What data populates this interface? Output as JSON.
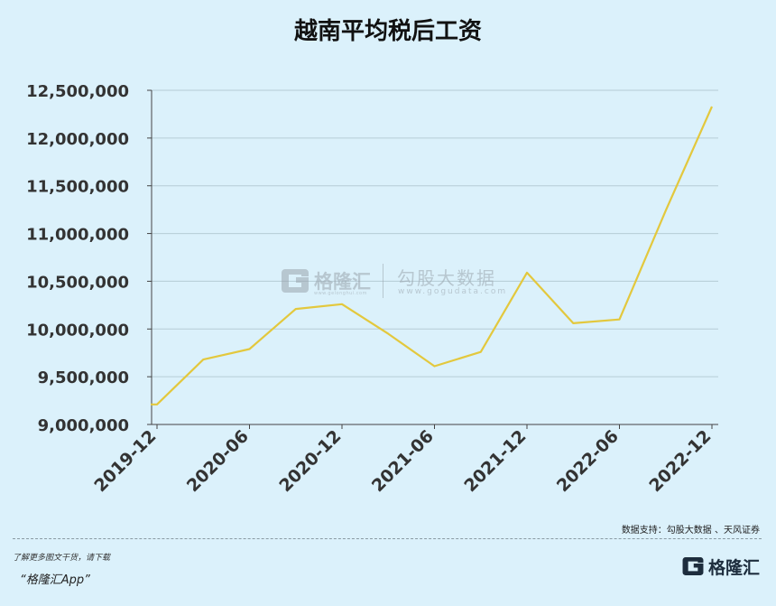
{
  "title": "越南平均税后工资",
  "source_note": "数据支持：勾股大数据 、天风证券",
  "footer": {
    "note": "了解更多图文干货，请下载",
    "app": "“格隆汇App”",
    "logo_text": "格隆汇"
  },
  "watermark": {
    "brand": "格隆汇",
    "brand_url": "www.gelonghui.com",
    "name": "勾股大数据",
    "url": "www.gogudata.com"
  },
  "colors": {
    "line": "#e3c83d",
    "background": "#dbf1fb",
    "grid": "#b6ccd6"
  },
  "chart_data": {
    "type": "line",
    "title": "越南平均税后工资",
    "x": [
      "2019-12",
      "2020-03",
      "2020-06",
      "2020-09",
      "2020-12",
      "2021-03",
      "2021-06",
      "2021-09",
      "2021-12",
      "2022-03",
      "2022-06",
      "2022-09",
      "2022-12"
    ],
    "series": [
      {
        "values": [
          9210000,
          9680000,
          9790000,
          10210000,
          10260000,
          9950000,
          9610000,
          9760000,
          10590000,
          10060000,
          10100000,
          11240000,
          12330000
        ]
      }
    ],
    "x_ticks": [
      "2019-12",
      "2020-06",
      "2020-12",
      "2021-06",
      "2021-12",
      "2022-06",
      "2022-12"
    ],
    "y_ticks": [
      "9,000,000",
      "9,500,000",
      "10,000,000",
      "10,500,000",
      "11,000,000",
      "11,500,000",
      "12,000,000",
      "12,500,000"
    ],
    "ylim": [
      9000000,
      12500000
    ],
    "grid": "horizontal"
  }
}
